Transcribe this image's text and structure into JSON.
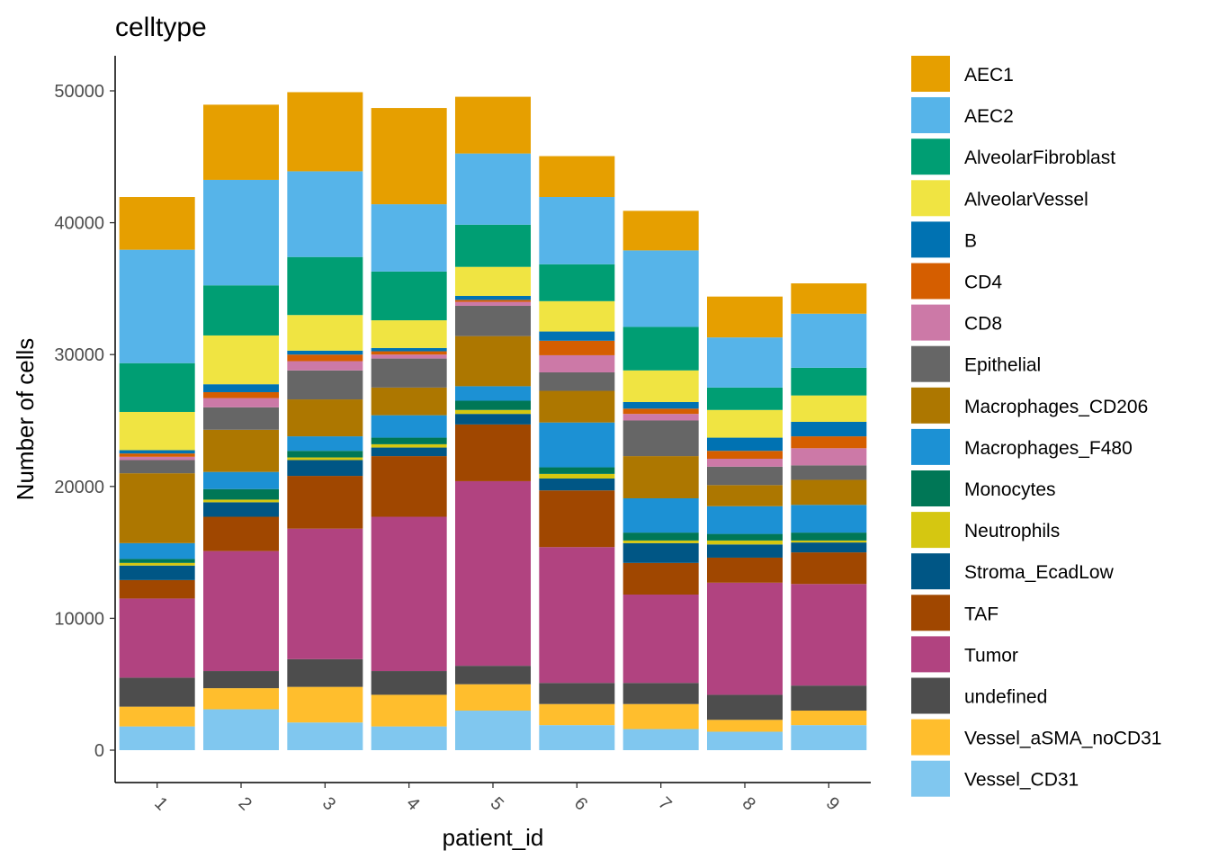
{
  "chart_data": {
    "type": "bar",
    "stacked": true,
    "title": "celltype",
    "xlabel": "patient_id",
    "ylabel": "Number of cells",
    "categories": [
      "1",
      "2",
      "3",
      "4",
      "5",
      "6",
      "7",
      "8",
      "9"
    ],
    "ylim": [
      0,
      52000
    ],
    "yticks": [
      0,
      10000,
      20000,
      30000,
      40000,
      50000
    ],
    "ytick_labels": [
      "0",
      "10000",
      "20000",
      "30000",
      "40000",
      "50000"
    ],
    "grid": false,
    "legend_position": "right",
    "stack_order": "bottom-to-top follows reverse legend order",
    "series": [
      {
        "name": "AEC1",
        "color": "#E69F00",
        "values": [
          4000,
          5700,
          6000,
          7300,
          4300,
          3100,
          3000,
          3100,
          2300
        ]
      },
      {
        "name": "AEC2",
        "color": "#56B4E9",
        "values": [
          8600,
          8000,
          6500,
          5100,
          5400,
          5100,
          5800,
          3800,
          4100
        ]
      },
      {
        "name": "AlveolarFibroblast",
        "color": "#009E73",
        "values": [
          3700,
          3800,
          4400,
          3700,
          3200,
          2800,
          3300,
          1700,
          2100
        ]
      },
      {
        "name": "AlveolarVessel",
        "color": "#F0E442",
        "values": [
          2900,
          3700,
          2700,
          2100,
          2200,
          2300,
          2400,
          2100,
          2000
        ]
      },
      {
        "name": "B",
        "color": "#0072B2",
        "values": [
          250,
          600,
          300,
          250,
          300,
          700,
          500,
          1000,
          1100
        ]
      },
      {
        "name": "CD4",
        "color": "#D55E00",
        "values": [
          250,
          450,
          500,
          250,
          150,
          1100,
          400,
          600,
          900
        ]
      },
      {
        "name": "CD8",
        "color": "#CC79A7",
        "values": [
          250,
          700,
          700,
          300,
          300,
          1300,
          500,
          600,
          1300
        ]
      },
      {
        "name": "Epithelial",
        "color": "#666666",
        "values": [
          1000,
          1700,
          2200,
          2200,
          2300,
          1400,
          2700,
          1400,
          1100
        ]
      },
      {
        "name": "Macrophages_CD206",
        "color": "#AD7700",
        "values": [
          5300,
          3200,
          2800,
          2100,
          3800,
          2400,
          3200,
          1600,
          1900
        ]
      },
      {
        "name": "Macrophages_F480",
        "color": "#1C91D4",
        "values": [
          1200,
          1300,
          1100,
          1700,
          1100,
          3400,
          2600,
          2100,
          2100
        ]
      },
      {
        "name": "Monocytes",
        "color": "#007756",
        "values": [
          300,
          800,
          500,
          500,
          700,
          500,
          600,
          500,
          600
        ]
      },
      {
        "name": "Neutrophils",
        "color": "#D5C711",
        "values": [
          200,
          200,
          200,
          250,
          300,
          350,
          200,
          300,
          150
        ]
      },
      {
        "name": "Stroma_EcadLow",
        "color": "#005685",
        "values": [
          1100,
          1100,
          1200,
          650,
          800,
          900,
          1500,
          1000,
          750
        ]
      },
      {
        "name": "TAF",
        "color": "#A04700",
        "values": [
          1400,
          2600,
          4000,
          4600,
          4300,
          4300,
          2400,
          1900,
          2400
        ]
      },
      {
        "name": "Tumor",
        "color": "#B14380",
        "values": [
          6000,
          9100,
          9900,
          11700,
          14000,
          10300,
          6700,
          8500,
          7700
        ]
      },
      {
        "name": "undefined",
        "color": "#4D4D4D",
        "values": [
          2200,
          1300,
          2100,
          1800,
          1400,
          1600,
          1600,
          1900,
          1900
        ]
      },
      {
        "name": "Vessel_aSMA_noCD31",
        "color": "#FFBE2D",
        "values": [
          1500,
          1600,
          2700,
          2400,
          2000,
          1600,
          1900,
          900,
          1100
        ]
      },
      {
        "name": "Vessel_CD31",
        "color": "#80C7EF",
        "values": [
          1800,
          3100,
          2100,
          1800,
          3000,
          1900,
          1600,
          1400,
          1900
        ]
      }
    ]
  }
}
